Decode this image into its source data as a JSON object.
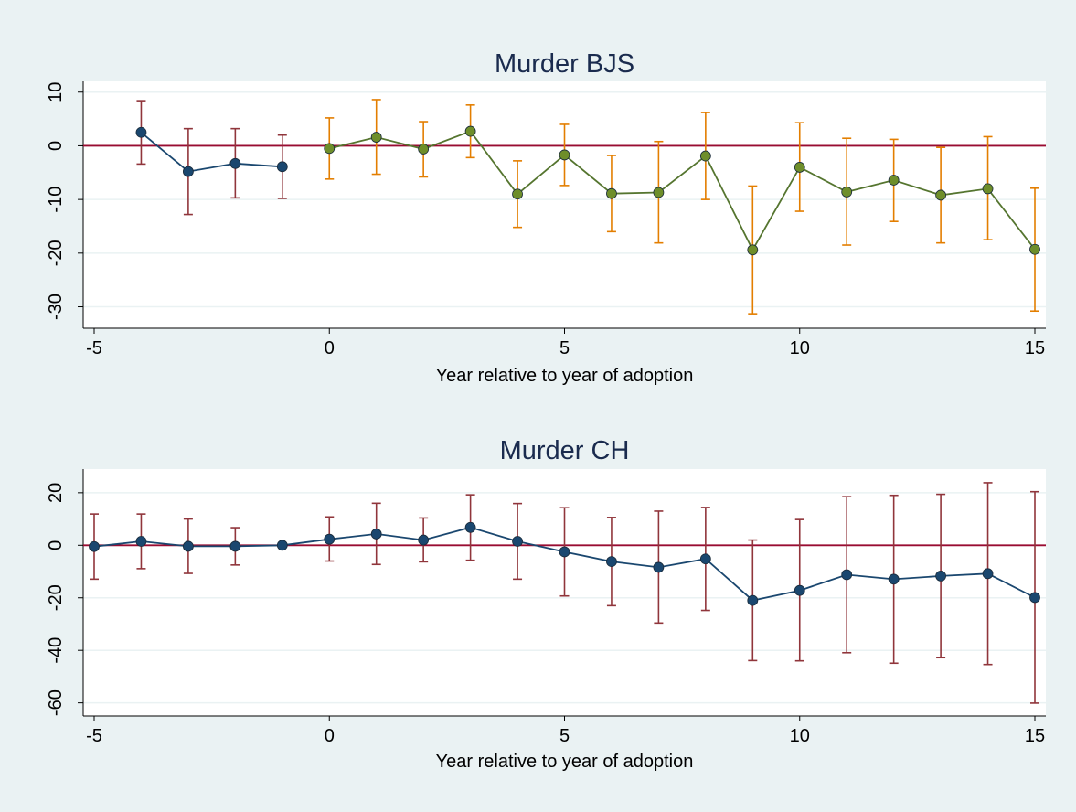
{
  "colors": {
    "background": "#eaf2f3",
    "plot_background": "#ffffff",
    "grid": "#eaf2f3",
    "axis": "#000000",
    "zero_line": "#990c32",
    "title_text": "#1a2b4e",
    "pre_line": "#1a476f",
    "pre_marker": "#1a476f",
    "pre_ci": "#90353b",
    "post_line": "#55752f",
    "post_marker": "#6e8e2a",
    "post_ci": "#e37e00",
    "ch_line": "#1a476f",
    "ch_marker": "#1a476f",
    "ch_ci": "#90353b"
  },
  "chart_data": [
    {
      "type": "line",
      "title": "Murder BJS",
      "xlabel": "Year relative to year of adoption",
      "ylabel": "",
      "xlim": [
        -5,
        15
      ],
      "ylim": [
        -34,
        12
      ],
      "xticks": [
        -5,
        0,
        5,
        10,
        15
      ],
      "yticks": [
        10,
        0,
        -10,
        -20,
        -30
      ],
      "grid": true,
      "reference_line_y": 0,
      "series": [
        {
          "role": "pre-adoption",
          "x": [
            -4,
            -3,
            -2,
            -1
          ],
          "y": [
            2.5,
            -4.8,
            -3.3,
            -3.9
          ],
          "ci_low": [
            -3.4,
            -12.8,
            -9.7,
            -9.8
          ],
          "ci_high": [
            8.4,
            3.2,
            3.2,
            2.0
          ]
        },
        {
          "role": "post-adoption",
          "x": [
            0,
            1,
            2,
            3,
            4,
            5,
            6,
            7,
            8,
            9,
            10,
            11,
            12,
            13,
            14,
            15
          ],
          "y": [
            -0.5,
            1.6,
            -0.6,
            2.7,
            -9.0,
            -1.7,
            -8.9,
            -8.7,
            -1.9,
            -19.4,
            -4.0,
            -8.6,
            -6.4,
            -9.2,
            -8.0,
            -19.3
          ],
          "ci_low": [
            -6.2,
            -5.3,
            -5.8,
            -2.2,
            -15.2,
            -7.4,
            -16.0,
            -18.1,
            -10.0,
            -31.3,
            -12.2,
            -18.5,
            -14.1,
            -18.1,
            -17.5,
            -30.8
          ],
          "ci_high": [
            5.2,
            8.6,
            4.5,
            7.6,
            -2.8,
            4.0,
            -1.8,
            0.8,
            6.2,
            -7.5,
            4.3,
            1.4,
            1.2,
            -0.3,
            1.7,
            -7.9
          ]
        }
      ]
    },
    {
      "type": "line",
      "title": "Murder CH",
      "xlabel": "Year relative to year of adoption",
      "ylabel": "",
      "xlim": [
        -5,
        15
      ],
      "ylim": [
        -65,
        29
      ],
      "xticks": [
        -5,
        0,
        5,
        10,
        15
      ],
      "yticks": [
        20,
        0,
        -20,
        -40,
        -60
      ],
      "grid": true,
      "reference_line_y": 0,
      "series": [
        {
          "role": "estimates",
          "x": [
            -5,
            -4,
            -3,
            -2,
            -1,
            0,
            1,
            2,
            3,
            4,
            5,
            6,
            7,
            8,
            9,
            10,
            11,
            12,
            13,
            14,
            15
          ],
          "y": [
            -0.5,
            1.5,
            -0.4,
            -0.4,
            0,
            2.3,
            4.3,
            2.0,
            6.8,
            1.5,
            -2.5,
            -6.2,
            -8.4,
            -5.2,
            -21.0,
            -17.2,
            -11.2,
            -12.9,
            -11.7,
            -10.8,
            -19.9
          ],
          "ci_low": [
            -12.9,
            -8.9,
            -10.7,
            -7.5,
            0,
            -6.0,
            -7.3,
            -6.3,
            -5.7,
            -12.9,
            -19.3,
            -23.0,
            -29.6,
            -24.8,
            -43.9,
            -44.0,
            -40.9,
            -44.9,
            -42.8,
            -45.4,
            -60.1
          ],
          "ci_high": [
            11.9,
            11.9,
            10.0,
            6.7,
            0,
            10.8,
            16.0,
            10.4,
            19.2,
            15.9,
            14.3,
            10.6,
            13.0,
            14.4,
            2.0,
            9.8,
            18.5,
            19.0,
            19.4,
            23.8,
            20.4
          ]
        }
      ]
    }
  ]
}
